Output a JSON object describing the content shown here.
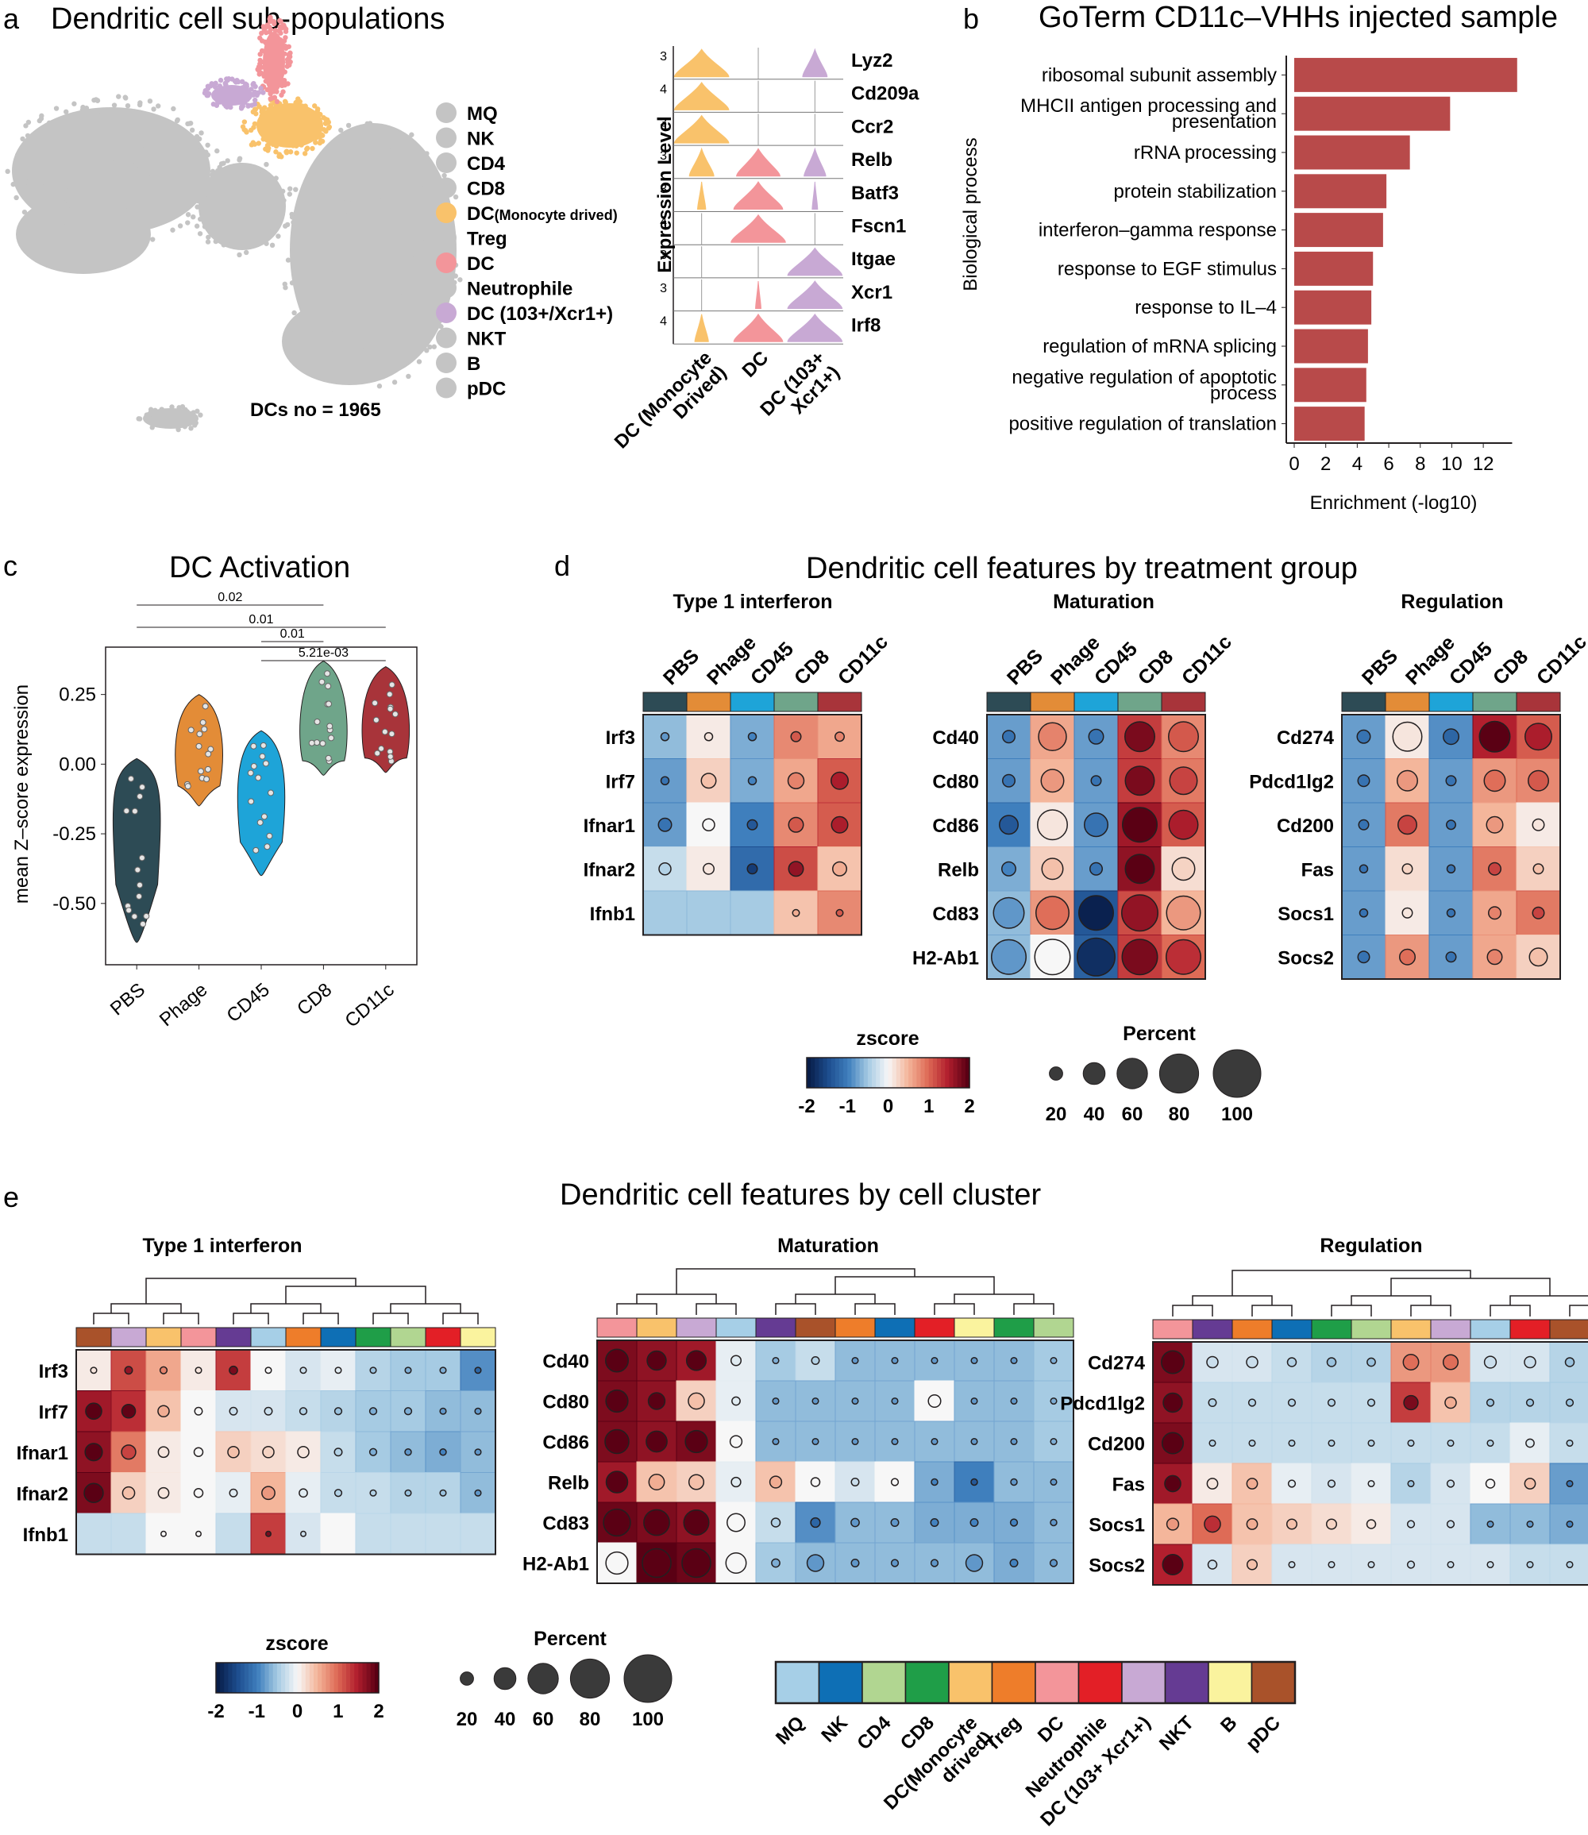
{
  "panels": {
    "a": "a",
    "b": "b",
    "c": "c",
    "d": "d",
    "e": "e"
  },
  "panel_a": {
    "title": "Dendritic cell sub-populations",
    "dc_count": "DCs no = 1965",
    "legend": [
      {
        "label": "MQ",
        "color": "#c4c4c4"
      },
      {
        "label": "NK",
        "color": "#c4c4c4"
      },
      {
        "label": "CD4",
        "color": "#c4c4c4"
      },
      {
        "label": "CD8",
        "color": "#c4c4c4"
      },
      {
        "label": "DC",
        "suffix": "(Monocyte drived)",
        "color": "#f9c26b"
      },
      {
        "label": "Treg",
        "color": "#c4c4c4"
      },
      {
        "label": "DC",
        "color": "#f3959a"
      },
      {
        "label": "Neutrophile",
        "color": "#c4c4c4"
      },
      {
        "label": "DC (103+/Xcr1+)",
        "color": "#c8a9d4"
      },
      {
        "label": "NKT",
        "color": "#c4c4c4"
      },
      {
        "label": "B",
        "color": "#c4c4c4"
      },
      {
        "label": "pDC",
        "color": "#c4c4c4"
      }
    ],
    "violin": {
      "ylabel": "Expression Level",
      "genes": [
        "Lyz2",
        "Cd209a",
        "Ccr2",
        "Relb",
        "Batf3",
        "Fscn1",
        "Itgae",
        "Xcr1",
        "Irf8"
      ],
      "ticks": [
        "3",
        "4",
        "3",
        "3",
        "3",
        "4",
        "3",
        "3",
        "4"
      ],
      "groups": [
        "DC (Monocyte Drived)",
        "DC",
        "DC (103+ Xcr1+)"
      ],
      "group_lines": [
        [
          "DC (Monocyte",
          "Drived)"
        ],
        [
          "DC"
        ],
        [
          "DC (103+",
          "Xcr1+)"
        ]
      ],
      "colors": [
        "#f9c26b",
        "#f3959a",
        "#c8a9d4"
      ]
    }
  },
  "chart_data": [
    {
      "type": "bar",
      "title": "GoTerm CD11c–VHHs injected sample",
      "xlabel": "Enrichment (-log10)",
      "ylabel": "Biological process",
      "categories": [
        "ribosomal subunit assembly",
        "MHCII antigen processing and presentation",
        "rRNA processing",
        "protein stabilization",
        "interferon–gamma response",
        "response to EGF stimulus",
        "response to IL–4",
        "regulation of mRNA splicing",
        "negative regulation of apoptotic process",
        "positive regulation of translation"
      ],
      "category_lines": [
        [
          "ribosomal subunit assembly"
        ],
        [
          "MHCII antigen processing and",
          "presentation"
        ],
        [
          "rRNA processing"
        ],
        [
          "protein stabilization"
        ],
        [
          "interferon–gamma response"
        ],
        [
          "response to EGF stimulus"
        ],
        [
          "response to IL–4"
        ],
        [
          "regulation of mRNA splicing"
        ],
        [
          "negative regulation of apoptotic",
          "process"
        ],
        [
          "positive regulation of translation"
        ]
      ],
      "values": [
        13.3,
        9.3,
        6.9,
        5.5,
        5.3,
        4.7,
        4.6,
        4.4,
        4.3,
        4.2
      ],
      "xticks": [
        "0",
        "2",
        "4",
        "6",
        "8",
        "10",
        "12"
      ],
      "xlim": [
        0,
        14
      ],
      "color": "#b84a4a"
    },
    {
      "type": "violin",
      "title": "DC Activation",
      "ylabel": "mean Z–score expression",
      "categories": [
        "PBS",
        "Phage",
        "CD45",
        "CD8",
        "CD11c"
      ],
      "colors": [
        "#2d4b55",
        "#e38c37",
        "#1ea4d8",
        "#6fa58a",
        "#a8343a"
      ],
      "yticks": [
        "0.25",
        "0.00",
        "-0.25",
        "-0.50"
      ],
      "ytick_values": [
        0.25,
        0.0,
        -0.25,
        -0.5
      ],
      "ylim": [
        -0.72,
        0.42
      ],
      "ranges": [
        [
          -0.64,
          0.02
        ],
        [
          -0.15,
          0.25
        ],
        [
          -0.4,
          0.12
        ],
        [
          -0.04,
          0.37
        ],
        [
          -0.03,
          0.35
        ]
      ],
      "medians": [
        -0.12,
        0.03,
        -0.1,
        0.09,
        0.1
      ],
      "pvalues": [
        {
          "from": "PBS",
          "to": "CD8",
          "label": "0.02"
        },
        {
          "from": "PBS",
          "to": "CD11c",
          "label": "0.01"
        },
        {
          "from": "CD45",
          "to": "CD8",
          "label": "0.01"
        },
        {
          "from": "CD45",
          "to": "CD11c",
          "label": "5.21e-03"
        }
      ]
    }
  ],
  "panel_d": {
    "title": "Dendritic cell features by treatment group",
    "groups": [
      "PBS",
      "Phage",
      "CD45",
      "CD8",
      "CD11c"
    ],
    "group_colors": [
      "#2d4b55",
      "#e38c37",
      "#1ea4d8",
      "#6fa58a",
      "#a8343a"
    ],
    "blocks": [
      {
        "title": "Type 1 interferon",
        "genes": [
          "Irf3",
          "Irf7",
          "Ifnar1",
          "Ifnar2",
          "Ifnb1"
        ],
        "z": [
          [
            -0.6,
            0.1,
            -0.7,
            0.8,
            0.6
          ],
          [
            -0.8,
            0.3,
            -0.7,
            0.6,
            1.1
          ],
          [
            -0.8,
            0.0,
            -1.0,
            0.8,
            1.1
          ],
          [
            -0.3,
            0.1,
            -1.2,
            1.2,
            0.4
          ],
          [
            -0.5,
            -0.5,
            -0.5,
            0.4,
            0.8
          ]
        ],
        "pct": [
          [
            5,
            5,
            5,
            10,
            8
          ],
          [
            5,
            22,
            5,
            25,
            28
          ],
          [
            18,
            15,
            10,
            22,
            26
          ],
          [
            15,
            12,
            10,
            22,
            20
          ],
          [
            0,
            0,
            0,
            2,
            2
          ]
        ]
      },
      {
        "title": "Maturation",
        "genes": [
          "Cd40",
          "Cd80",
          "Cd86",
          "Relb",
          "Cd83",
          "H2-Ab1"
        ],
        "z": [
          [
            -0.8,
            0.6,
            -0.8,
            1.3,
            0.8
          ],
          [
            -0.8,
            0.5,
            -0.8,
            1.3,
            0.9
          ],
          [
            -1.0,
            0.1,
            -0.8,
            1.6,
            1.1
          ],
          [
            -0.7,
            0.3,
            -0.8,
            1.7,
            0.2
          ],
          [
            -0.6,
            0.7,
            -1.4,
            1.2,
            0.5
          ],
          [
            -0.6,
            0.0,
            -1.3,
            1.3,
            1.0
          ]
        ],
        "pct": [
          [
            16,
            55,
            22,
            60,
            60
          ],
          [
            16,
            42,
            10,
            58,
            54
          ],
          [
            32,
            60,
            44,
            72,
            58
          ],
          [
            20,
            38,
            16,
            58,
            42
          ],
          [
            62,
            68,
            72,
            76,
            70
          ],
          [
            72,
            74,
            80,
            74,
            72
          ]
        ]
      },
      {
        "title": "Regulation",
        "genes": [
          "Cd274",
          "Pdcd1lg2",
          "Cd200",
          "Fas",
          "Socs1",
          "Socs2"
        ],
        "z": [
          [
            -0.8,
            0.1,
            -0.9,
            1.5,
            1.1
          ],
          [
            -0.8,
            0.5,
            -0.8,
            0.7,
            0.8
          ],
          [
            -0.8,
            0.9,
            -0.8,
            0.5,
            0.1
          ],
          [
            -0.8,
            0.2,
            -0.8,
            0.9,
            0.3
          ],
          [
            -0.8,
            0.1,
            -0.8,
            0.6,
            0.9
          ],
          [
            -0.8,
            0.7,
            -0.8,
            0.6,
            0.3
          ]
        ],
        "pct": [
          [
            18,
            58,
            24,
            62,
            52
          ],
          [
            14,
            36,
            10,
            38,
            36
          ],
          [
            10,
            32,
            8,
            26,
            14
          ],
          [
            5,
            10,
            5,
            16,
            10
          ],
          [
            5,
            10,
            5,
            16,
            14
          ],
          [
            14,
            24,
            10,
            22,
            30
          ]
        ]
      }
    ]
  },
  "panel_e": {
    "title": "Dendritic cell features by cell cluster",
    "clusters": [
      {
        "label": "MQ",
        "color": "#a6cfe7"
      },
      {
        "label": "NK",
        "color": "#0e6fb5"
      },
      {
        "label": "CD4",
        "color": "#b1d691"
      },
      {
        "label": "CD8",
        "color": "#1f9e48"
      },
      {
        "label": "DC(Monocyte drived)",
        "lines": [
          "DC(Monocyte",
          "drived)"
        ],
        "color": "#f9c26b"
      },
      {
        "label": "Treg",
        "color": "#ee7d2a"
      },
      {
        "label": "DC",
        "color": "#f3959a"
      },
      {
        "label": "Neutrophile",
        "color": "#e31f26"
      },
      {
        "label": "DC (103+ Xcr1+)",
        "color": "#c8a9d4"
      },
      {
        "label": "NKT",
        "color": "#653b93"
      },
      {
        "label": "B",
        "color": "#faf39e"
      },
      {
        "label": "pDC",
        "color": "#a9522a"
      }
    ],
    "blocks": [
      {
        "title": "Type 1 interferon",
        "order": [
          11,
          8,
          4,
          6,
          9,
          0,
          5,
          1,
          3,
          2,
          7,
          10
        ],
        "genes": [
          "Irf3",
          "Irf7",
          "Ifnar1",
          "Ifnar2",
          "Ifnb1"
        ],
        "z": [
          [
            0.1,
            1.2,
            0.6,
            0.1,
            1.3,
            0.0,
            -0.2,
            -0.1,
            -0.4,
            -0.5,
            -0.5,
            -0.9
          ],
          [
            1.6,
            1.4,
            0.4,
            0.0,
            -0.2,
            -0.2,
            -0.3,
            -0.4,
            -0.5,
            -0.5,
            -0.6,
            -0.6
          ],
          [
            1.7,
            0.9,
            0.1,
            0.0,
            0.3,
            0.2,
            0.1,
            -0.3,
            -0.5,
            -0.6,
            -0.7,
            -0.6
          ],
          [
            1.8,
            0.3,
            0.1,
            0.0,
            -0.1,
            0.5,
            -0.1,
            -0.3,
            -0.3,
            -0.4,
            -0.4,
            -0.6
          ],
          [
            -0.3,
            -0.3,
            0.0,
            0.0,
            -0.3,
            1.3,
            -0.2,
            0.0,
            -0.3,
            -0.3,
            -0.3,
            -0.3
          ]
        ],
        "pct": [
          [
            5,
            10,
            8,
            5,
            12,
            5,
            5,
            5,
            5,
            5,
            5,
            5
          ],
          [
            38,
            30,
            22,
            10,
            10,
            10,
            8,
            8,
            8,
            8,
            5,
            5
          ],
          [
            42,
            32,
            20,
            14,
            22,
            22,
            22,
            10,
            8,
            6,
            6,
            5
          ],
          [
            48,
            25,
            20,
            14,
            10,
            28,
            12,
            8,
            5,
            5,
            5,
            5
          ],
          [
            0,
            0,
            2,
            2,
            0,
            2,
            2,
            0,
            0,
            0,
            0,
            0
          ]
        ]
      },
      {
        "title": "Maturation",
        "order": [
          6,
          4,
          8,
          0,
          9,
          11,
          5,
          1,
          7,
          10,
          3,
          2
        ],
        "genes": [
          "Cd40",
          "Cd80",
          "Cd86",
          "Relb",
          "Cd83",
          "H2-Ab1"
        ],
        "z": [
          [
            1.8,
            1.7,
            1.6,
            -0.1,
            -0.5,
            -0.3,
            -0.6,
            -0.6,
            -0.6,
            -0.6,
            -0.6,
            -0.5
          ],
          [
            1.8,
            1.7,
            0.3,
            -0.1,
            -0.6,
            -0.6,
            -0.6,
            -0.6,
            0.0,
            -0.6,
            -0.6,
            -0.5
          ],
          [
            1.8,
            1.7,
            1.8,
            0.0,
            -0.6,
            -0.6,
            -0.6,
            -0.6,
            -0.6,
            -0.6,
            -0.6,
            -0.5
          ],
          [
            1.6,
            0.4,
            0.3,
            -0.1,
            0.4,
            0.0,
            -0.2,
            0.0,
            -0.7,
            -1.0,
            -0.6,
            -0.6
          ],
          [
            1.9,
            1.8,
            1.7,
            0.0,
            -0.3,
            -0.9,
            -0.6,
            -0.6,
            -0.7,
            -0.7,
            -0.7,
            -0.6
          ],
          [
            0.0,
            2.0,
            1.9,
            0.0,
            -0.5,
            -0.6,
            -0.6,
            -0.6,
            -0.6,
            -0.6,
            -0.7,
            -0.6
          ]
        ],
        "pct": [
          [
            60,
            48,
            50,
            18,
            5,
            10,
            5,
            5,
            5,
            5,
            5,
            5
          ],
          [
            58,
            40,
            38,
            12,
            5,
            5,
            5,
            5,
            26,
            5,
            5,
            5
          ],
          [
            64,
            54,
            58,
            24,
            5,
            5,
            5,
            5,
            5,
            5,
            5,
            5
          ],
          [
            56,
            36,
            34,
            16,
            24,
            14,
            10,
            8,
            6,
            6,
            6,
            5
          ],
          [
            74,
            70,
            68,
            44,
            14,
            16,
            12,
            10,
            10,
            10,
            8,
            6
          ],
          [
            58,
            80,
            80,
            52,
            12,
            40,
            10,
            8,
            8,
            40,
            10,
            8
          ]
        ]
      },
      {
        "title": "Regulation",
        "order": [
          6,
          9,
          5,
          1,
          3,
          2,
          4,
          8,
          0,
          7,
          11,
          10
        ],
        "genes": [
          "Cd274",
          "Pdcd1lg2",
          "Cd200",
          "Fas",
          "Socs1",
          "Socs2"
        ],
        "z": [
          [
            1.8,
            -0.2,
            -0.2,
            -0.3,
            -0.4,
            -0.4,
            0.7,
            0.7,
            -0.2,
            -0.2,
            -0.4,
            -0.4
          ],
          [
            1.7,
            -0.3,
            -0.3,
            -0.3,
            -0.3,
            -0.3,
            1.3,
            0.4,
            -0.4,
            -0.4,
            -0.4,
            -0.4
          ],
          [
            1.8,
            -0.3,
            -0.3,
            -0.3,
            -0.3,
            -0.3,
            -0.3,
            -0.3,
            -0.3,
            -0.1,
            -0.3,
            -0.3
          ],
          [
            1.6,
            0.1,
            0.4,
            -0.1,
            -0.2,
            -0.1,
            -0.4,
            -0.2,
            0.0,
            0.3,
            -0.8,
            -0.8
          ],
          [
            0.5,
            1.0,
            0.4,
            0.3,
            0.2,
            0.1,
            -0.2,
            -0.2,
            -0.6,
            -0.6,
            -0.7,
            -0.7
          ],
          [
            1.5,
            -0.2,
            0.3,
            -0.2,
            -0.2,
            -0.2,
            -0.2,
            -0.2,
            -0.2,
            -0.3,
            -0.3,
            -0.3
          ]
        ],
        "pct": [
          [
            60,
            22,
            22,
            14,
            14,
            12,
            36,
            34,
            24,
            22,
            14,
            10
          ],
          [
            48,
            10,
            8,
            8,
            8,
            8,
            32,
            22,
            8,
            8,
            8,
            5
          ],
          [
            55,
            5,
            5,
            5,
            5,
            5,
            5,
            5,
            5,
            12,
            5,
            5
          ],
          [
            38,
            20,
            20,
            8,
            8,
            5,
            5,
            8,
            14,
            20,
            5,
            5
          ],
          [
            24,
            38,
            20,
            18,
            18,
            14,
            8,
            8,
            5,
            5,
            5,
            5
          ],
          [
            52,
            14,
            18,
            5,
            5,
            5,
            8,
            5,
            5,
            5,
            5,
            5
          ]
        ]
      }
    ]
  },
  "legend_zscore": {
    "title": "zscore",
    "ticks": [
      "-2",
      "-1",
      "0",
      "1",
      "2"
    ]
  },
  "legend_percent": {
    "title": "Percent",
    "ticks": [
      "20",
      "40",
      "60",
      "80",
      "100"
    ]
  }
}
